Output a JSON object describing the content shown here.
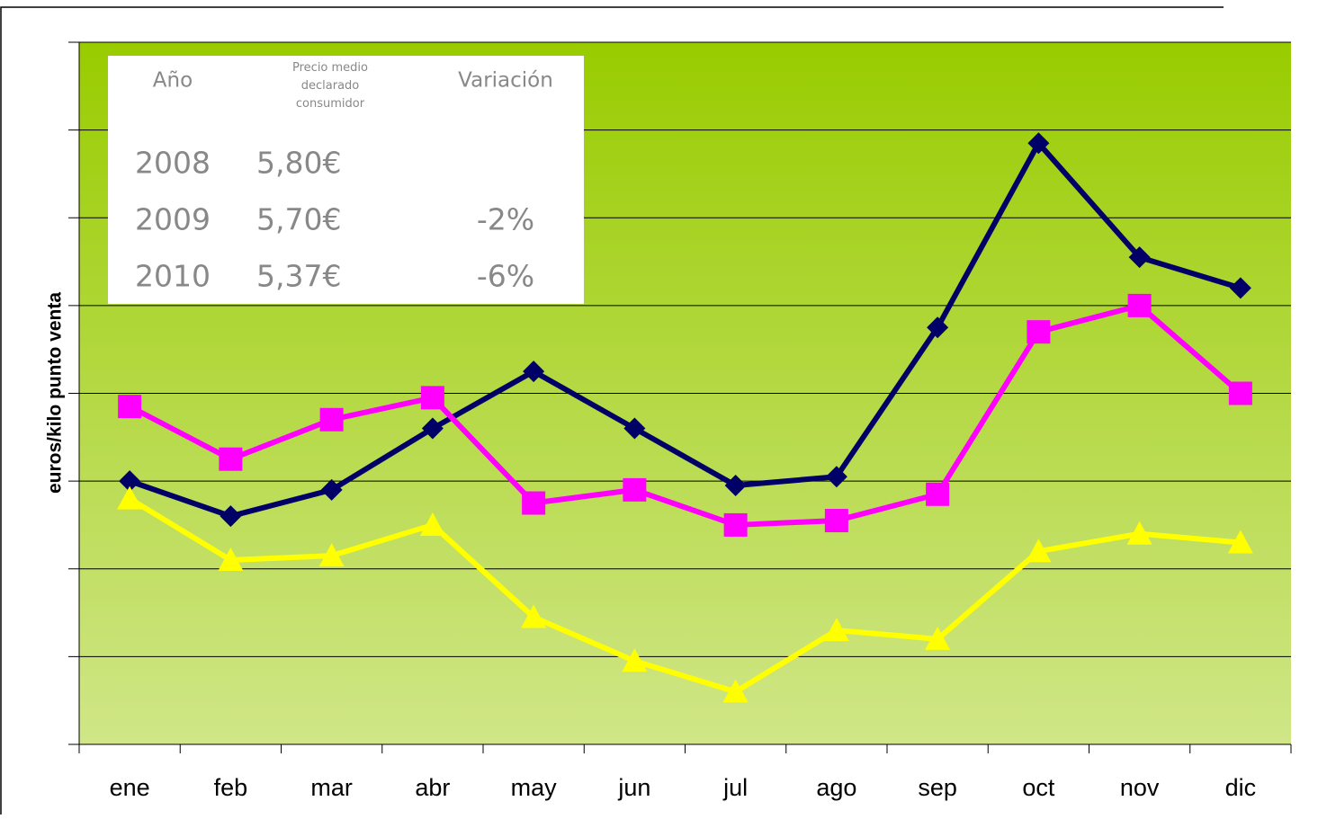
{
  "chart_data": {
    "type": "line",
    "y_label": "euros/kilo punto venta",
    "categories": [
      "ene",
      "feb",
      "mar",
      "abr",
      "may",
      "jun",
      "jul",
      "ago",
      "sep",
      "oct",
      "nov",
      "dic"
    ],
    "series": [
      {
        "color": "#000066",
        "marker": "diamond",
        "values": [
          5.6,
          5.52,
          5.58,
          5.72,
          5.85,
          5.72,
          5.59,
          5.61,
          5.95,
          6.37,
          6.11,
          6.04
        ]
      },
      {
        "color": "#ff00ff",
        "marker": "square",
        "values": [
          5.77,
          5.65,
          5.74,
          5.79,
          5.55,
          5.58,
          5.5,
          5.51,
          5.57,
          5.94,
          6.0,
          5.8
        ]
      },
      {
        "color": "#ffff00",
        "marker": "triangle",
        "values": [
          5.56,
          5.42,
          5.43,
          5.5,
          5.29,
          5.19,
          5.12,
          5.26,
          5.24,
          5.44,
          5.48,
          5.46
        ]
      }
    ],
    "ylim": [
      5.0,
      6.6
    ],
    "yticks": [
      5.0,
      5.2,
      5.4,
      5.6,
      5.8,
      6.0,
      6.2,
      6.4,
      6.6
    ],
    "grid": true
  },
  "table": {
    "columns": [
      "Año",
      "Precio medio declarado consumidor",
      "Variación"
    ],
    "rows": [
      [
        "2008",
        "5,80€"
      ],
      [
        "2009",
        "5,70€",
        "-2%"
      ],
      [
        "2010",
        "5,37€",
        "-6%"
      ]
    ]
  }
}
